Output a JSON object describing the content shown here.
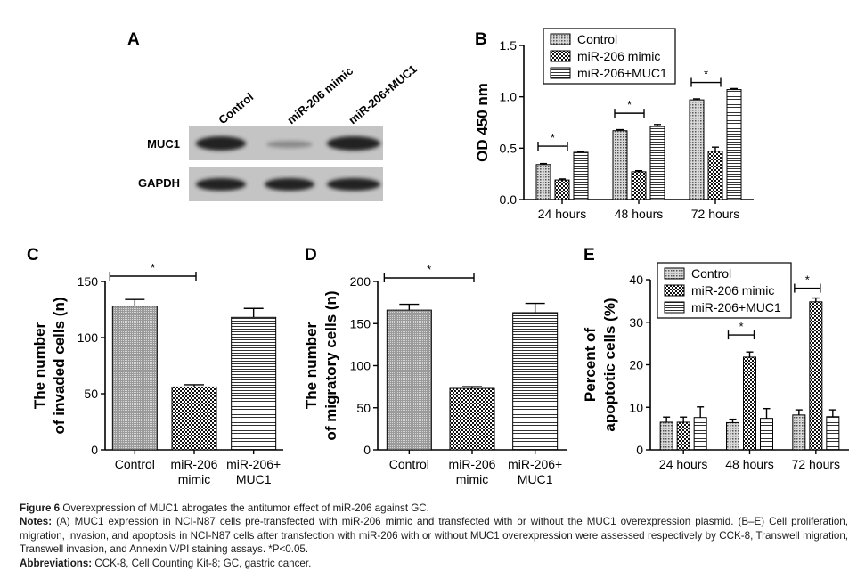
{
  "panels": {
    "A": {
      "letter": "A",
      "lanes": [
        "Control",
        "miR-206 mimic",
        "miR-206+MUC1"
      ],
      "rows": [
        "MUC1",
        "GAPDH"
      ]
    },
    "B": {
      "letter": "B",
      "legend": [
        "Control",
        "miR-206 mimic",
        "miR-206+MUC1"
      ],
      "significance": "*"
    },
    "C": {
      "letter": "C",
      "significance": "*"
    },
    "D": {
      "letter": "D",
      "significance": "*"
    },
    "E": {
      "letter": "E",
      "legend": [
        "Control",
        "miR-206 mimic",
        "miR-206+MUC1"
      ],
      "significance": "*"
    }
  },
  "chart_data": [
    {
      "id": "B",
      "type": "bar",
      "categories": [
        "24 hours",
        "48 hours",
        "72 hours"
      ],
      "series": [
        {
          "name": "Control",
          "values": [
            0.34,
            0.67,
            0.97
          ],
          "errors": [
            0.01,
            0.01,
            0.01
          ]
        },
        {
          "name": "miR-206 mimic",
          "values": [
            0.19,
            0.27,
            0.47
          ],
          "errors": [
            0.01,
            0.01,
            0.04
          ]
        },
        {
          "name": "miR-206+MUC1",
          "values": [
            0.46,
            0.71,
            1.07
          ],
          "errors": [
            0.01,
            0.02,
            0.01
          ]
        }
      ],
      "xlabel": "",
      "ylabel": "OD 450 nm",
      "ylim": [
        0,
        1.5
      ],
      "yticks": [
        "0.0",
        "0.5",
        "1.0",
        "1.5"
      ],
      "legend_position": "top-left",
      "grid": false
    },
    {
      "id": "C",
      "type": "bar",
      "categories": [
        "Control",
        "miR-206 mimic",
        "miR-206+ MUC1"
      ],
      "values": [
        128,
        56,
        118
      ],
      "errors": [
        6,
        2,
        8
      ],
      "xlabel": "",
      "ylabel": "The number of invaded cells (n)",
      "ylim": [
        0,
        150
      ],
      "yticks": [
        "0",
        "50",
        "100",
        "150"
      ],
      "grid": false
    },
    {
      "id": "D",
      "type": "bar",
      "categories": [
        "Control",
        "miR-206 mimic",
        "miR-206+ MUC1"
      ],
      "values": [
        166,
        73,
        163
      ],
      "errors": [
        7,
        2,
        11
      ],
      "xlabel": "",
      "ylabel": "The number of migratory cells (n)",
      "ylim": [
        0,
        200
      ],
      "yticks": [
        "0",
        "50",
        "100",
        "150",
        "200"
      ],
      "grid": false
    },
    {
      "id": "E",
      "type": "bar",
      "categories": [
        "24 hours",
        "48 hours",
        "72 hours"
      ],
      "series": [
        {
          "name": "Control",
          "values": [
            6.5,
            6.4,
            8.2
          ],
          "errors": [
            1.2,
            0.8,
            1.2
          ]
        },
        {
          "name": "miR-206 mimic",
          "values": [
            6.5,
            21.8,
            34.8
          ],
          "errors": [
            1.2,
            1.2,
            0.9
          ]
        },
        {
          "name": "miR-206+MUC1",
          "values": [
            7.6,
            7.4,
            7.8
          ],
          "errors": [
            2.5,
            2.3,
            1.6
          ]
        }
      ],
      "xlabel": "",
      "ylabel": "Percent of apoptotic cells (%)",
      "ylim": [
        0,
        40
      ],
      "yticks": [
        "0",
        "10",
        "20",
        "30",
        "40"
      ],
      "legend_position": "top-left",
      "grid": false
    }
  ],
  "caption": {
    "figure_label": "Figure 6",
    "figure_text": "Overexpression of MUC1 abrogates the antitumor effect of miR-206 against GC.",
    "notes_label": "Notes:",
    "notes_text": "(A) MUC1 expression in NCI-N87 cells pre-transfected with miR-206 mimic and transfected with or without the MUC1 overexpression plasmid. (B–E) Cell proliferation, migration, invasion, and apoptosis in NCI-N87 cells after transfection with miR-206 with or without MUC1 overexpression were assessed respectively by CCK-8, Transwell migration, Transwell invasion, and Annexin V/PI staining assays. *P<0.05.",
    "abbrev_label": "Abbreviations:",
    "abbrev_text": "CCK-8, Cell Counting Kit-8; GC, gastric cancer."
  }
}
